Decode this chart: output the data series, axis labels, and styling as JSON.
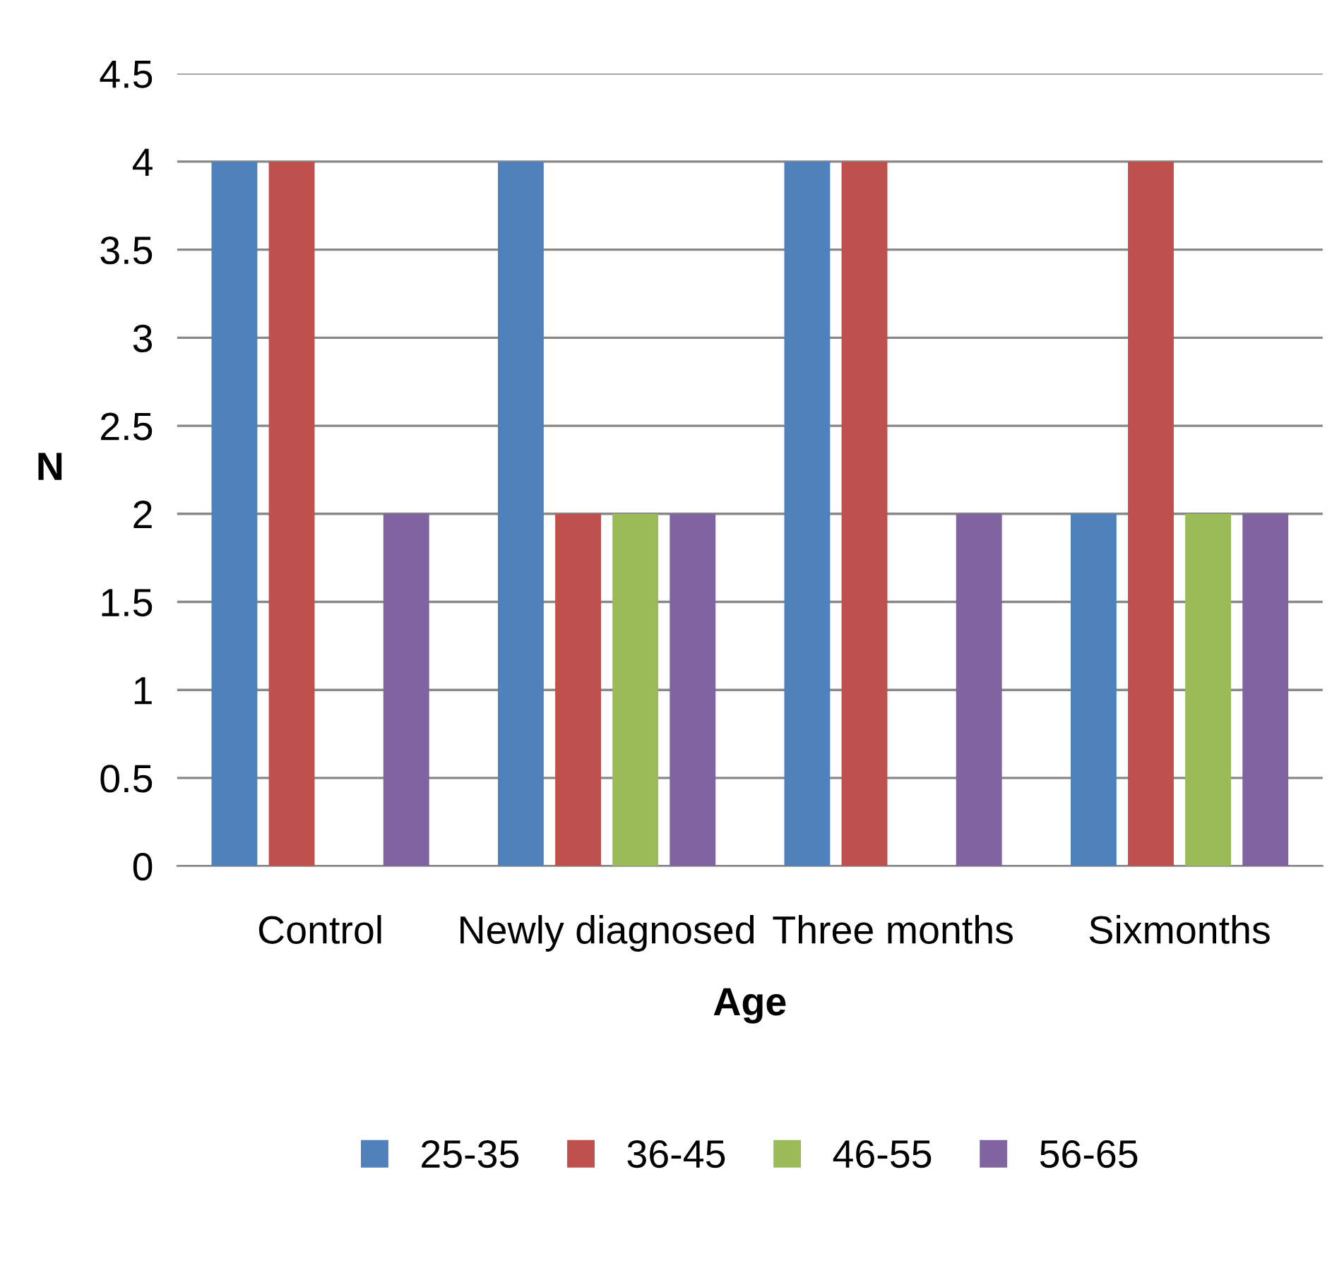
{
  "chart_data": {
    "type": "bar",
    "xlabel": "Age",
    "ylabel": "N",
    "categories": [
      "Control",
      "Newly diagnosed",
      "Three months",
      "Sixmonths"
    ],
    "series": [
      {
        "name": "25-35",
        "color": "#4f81bd",
        "values": [
          4,
          4,
          4,
          2
        ]
      },
      {
        "name": "36-45",
        "color": "#c0504d",
        "values": [
          4,
          2,
          4,
          4
        ]
      },
      {
        "name": "46-55",
        "color": "#9bbb59",
        "values": [
          0,
          2,
          0,
          2
        ]
      },
      {
        "name": "56-65",
        "color": "#8064a2",
        "values": [
          2,
          2,
          2,
          2
        ]
      }
    ],
    "ylim": [
      0,
      4.5
    ],
    "yticks": [
      0,
      0.5,
      1,
      1.5,
      2,
      2.5,
      3,
      3.5,
      4,
      4.5
    ],
    "grid": "y",
    "legend": "bottom"
  }
}
